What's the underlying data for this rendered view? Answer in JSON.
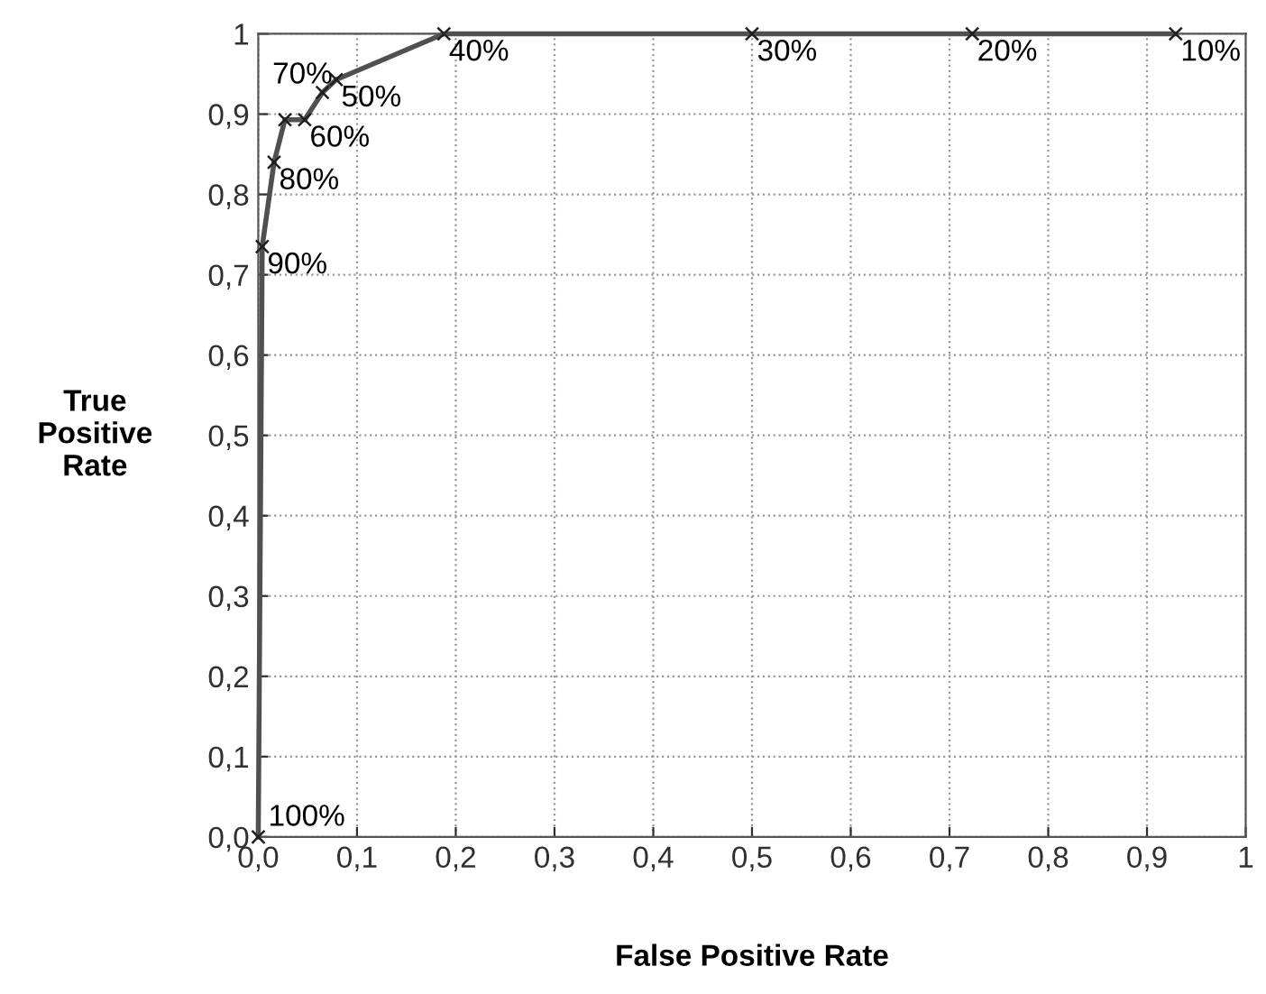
{
  "chart_data": {
    "type": "line",
    "xlabel": "False Positive Rate",
    "ylabel": "True\nPositive\nRate",
    "series": [
      {
        "color": "#505050",
        "x": [
          0,
          0.004,
          0.016,
          0.027,
          0.047,
          0.065,
          0.079,
          0.188,
          0.5,
          0.723,
          0.929
        ],
        "values": [
          0,
          0.735,
          0.84,
          0.893,
          0.893,
          0.927,
          0.943,
          1,
          1,
          1,
          1
        ]
      }
    ],
    "marker": "cross",
    "line_style": "solid",
    "grid": true,
    "legend": false,
    "xlim": [
      0,
      1
    ],
    "ylim": [
      0,
      1
    ],
    "xticks": [
      {
        "value": 0,
        "label": "0,0"
      },
      {
        "value": 0.1,
        "label": "0,1"
      },
      {
        "value": 0.2,
        "label": "0,2"
      },
      {
        "value": 0.3,
        "label": "0,3"
      },
      {
        "value": 0.4,
        "label": "0,4"
      },
      {
        "value": 0.5,
        "label": "0,5"
      },
      {
        "value": 0.6,
        "label": "0,6"
      },
      {
        "value": 0.7,
        "label": "0,7"
      },
      {
        "value": 0.8,
        "label": "0,8"
      },
      {
        "value": 0.9,
        "label": "0,9"
      },
      1
    ],
    "yticks": [
      {
        "value": 0,
        "label": "0,0"
      },
      {
        "value": 0.1,
        "label": "0,1"
      },
      {
        "value": 0.2,
        "label": "0,2"
      },
      {
        "value": 0.3,
        "label": "0,3"
      },
      {
        "value": 0.4,
        "label": "0,4"
      },
      {
        "value": 0.5,
        "label": "0,5"
      },
      {
        "value": 0.6,
        "label": "0,6"
      },
      {
        "value": 0.7,
        "label": "0,7"
      },
      {
        "value": 0.8,
        "label": "0,8"
      },
      {
        "value": 0.9,
        "label": "0,9"
      },
      1
    ],
    "annotations": [
      {
        "text": "100%",
        "x": 0,
        "y": 0
      },
      {
        "text": "90%",
        "x": 0.004,
        "y": 0.735
      },
      {
        "text": "80%",
        "x": 0.016,
        "y": 0.84
      },
      {
        "text": "70%",
        "x": 0.027,
        "y": 0.893
      },
      {
        "text": "60%",
        "x": 0.047,
        "y": 0.893
      },
      {
        "text": "50%",
        "x": 0.079,
        "y": 0.943
      },
      {
        "text": "40%",
        "x": 0.188,
        "y": 1
      },
      {
        "text": "30%",
        "x": 0.5,
        "y": 1
      },
      {
        "text": "20%",
        "x": 0.723,
        "y": 1
      },
      {
        "text": "10%",
        "x": 0.929,
        "y": 1
      }
    ]
  }
}
